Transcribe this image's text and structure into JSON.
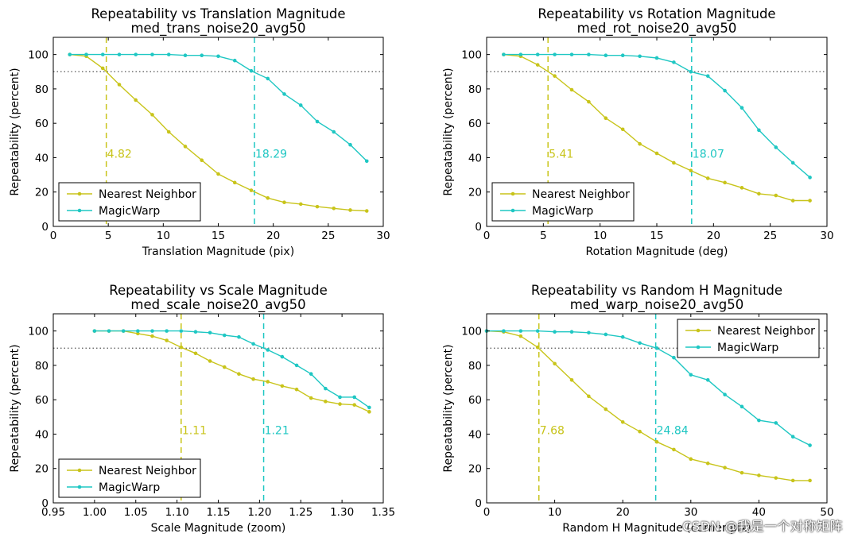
{
  "threshold": 90,
  "watermark": "CSDN @我是一个对称矩阵",
  "colors": {
    "nearest": "#c8c41a",
    "magic": "#1fc7c3",
    "axis": "#000000",
    "threshold": "#555555"
  },
  "chart_data": [
    {
      "type": "line",
      "title": "Repeatability vs Translation Magnitude",
      "subtitle": "med_trans_noise20_avg50",
      "xlabel": "Translation Magnitude (pix)",
      "ylabel": "Repeatability (percent)",
      "xlim": [
        0,
        30
      ],
      "ylim": [
        0,
        110
      ],
      "xticks": [
        0,
        5,
        10,
        15,
        20,
        25,
        30
      ],
      "xtick_labels": [
        "0",
        "5",
        "10",
        "15",
        "20",
        "25",
        "30"
      ],
      "yticks": [
        0,
        20,
        40,
        60,
        80,
        100
      ],
      "ytick_labels": [
        "0",
        "20",
        "40",
        "60",
        "80",
        "100"
      ],
      "legend": "lower-left",
      "series": [
        {
          "name": "Nearest Neighbor",
          "x": [
            1.5,
            3.0,
            4.5,
            6.0,
            7.5,
            9.0,
            10.5,
            12.0,
            13.5,
            15.0,
            16.5,
            18.0,
            19.5,
            21.0,
            22.5,
            24.0,
            25.5,
            27.0,
            28.5
          ],
          "values": [
            100,
            99,
            92,
            82.5,
            73.5,
            65,
            55,
            46.5,
            38.5,
            30.5,
            25.5,
            21,
            16.5,
            14,
            13,
            11.5,
            10.5,
            9.5,
            9
          ]
        },
        {
          "name": "MagicWarp",
          "x": [
            1.5,
            3.0,
            4.5,
            6.0,
            7.5,
            9.0,
            10.5,
            12.0,
            13.5,
            15.0,
            16.5,
            18.0,
            19.5,
            21.0,
            22.5,
            24.0,
            25.5,
            27.0,
            28.5
          ],
          "values": [
            100,
            100,
            100,
            100,
            100,
            100,
            100,
            99.5,
            99.5,
            99,
            96.5,
            90.5,
            86,
            77,
            70.5,
            61,
            55,
            47.5,
            38
          ]
        }
      ],
      "annotations": [
        {
          "series": "Nearest Neighbor",
          "x": 4.82,
          "label": "4.82"
        },
        {
          "series": "MagicWarp",
          "x": 18.29,
          "label": "18.29"
        }
      ]
    },
    {
      "type": "line",
      "title": "Repeatability vs Rotation Magnitude",
      "subtitle": "med_rot_noise20_avg50",
      "xlabel": "Rotation Magnitude (deg)",
      "ylabel": "Repeatability (percent)",
      "xlim": [
        0,
        30
      ],
      "ylim": [
        0,
        110
      ],
      "xticks": [
        0,
        5,
        10,
        15,
        20,
        25,
        30
      ],
      "xtick_labels": [
        "0",
        "5",
        "10",
        "15",
        "20",
        "25",
        "30"
      ],
      "yticks": [
        0,
        20,
        40,
        60,
        80,
        100
      ],
      "ytick_labels": [
        "0",
        "20",
        "40",
        "60",
        "80",
        "100"
      ],
      "legend": "lower-left",
      "series": [
        {
          "name": "Nearest Neighbor",
          "x": [
            1.5,
            3.0,
            4.5,
            6.0,
            7.5,
            9.0,
            10.5,
            12.0,
            13.5,
            15.0,
            16.5,
            18.0,
            19.5,
            21.0,
            22.5,
            24.0,
            25.5,
            27.0,
            28.5
          ],
          "values": [
            100,
            99,
            94,
            87.5,
            79.5,
            72.5,
            63,
            56.5,
            48,
            42.5,
            37,
            32.5,
            28,
            25.5,
            22.5,
            19,
            18,
            15,
            15
          ]
        },
        {
          "name": "MagicWarp",
          "x": [
            1.5,
            3.0,
            4.5,
            6.0,
            7.5,
            9.0,
            10.5,
            12.0,
            13.5,
            15.0,
            16.5,
            18.0,
            19.5,
            21.0,
            22.5,
            24.0,
            25.5,
            27.0,
            28.5
          ],
          "values": [
            100,
            100,
            100,
            100,
            100,
            100,
            99.5,
            99.5,
            99,
            98,
            95.5,
            90,
            87.5,
            79,
            69,
            56,
            46,
            37,
            28.5
          ]
        }
      ],
      "annotations": [
        {
          "series": "Nearest Neighbor",
          "x": 5.41,
          "label": "5.41"
        },
        {
          "series": "MagicWarp",
          "x": 18.07,
          "label": "18.07"
        }
      ]
    },
    {
      "type": "line",
      "title": "Repeatability vs Scale Magnitude",
      "subtitle": "med_scale_noise20_avg50",
      "xlabel": "Scale Magnitude (zoom)",
      "ylabel": "Repeatability (percent)",
      "xlim": [
        0.95,
        1.35
      ],
      "ylim": [
        0,
        110
      ],
      "xticks": [
        0.95,
        1.0,
        1.05,
        1.1,
        1.15,
        1.2,
        1.25,
        1.3,
        1.35
      ],
      "xtick_labels": [
        "0.95",
        "1.00",
        "1.05",
        "1.10",
        "1.15",
        "1.20",
        "1.25",
        "1.30",
        "1.35"
      ],
      "yticks": [
        0,
        20,
        40,
        60,
        80,
        100
      ],
      "ytick_labels": [
        "0",
        "20",
        "40",
        "60",
        "80",
        "100"
      ],
      "legend": "lower-left",
      "series": [
        {
          "name": "Nearest Neighbor",
          "x": [
            1.0,
            1.0175,
            1.035,
            1.0525,
            1.07,
            1.0875,
            1.105,
            1.1225,
            1.14,
            1.1575,
            1.175,
            1.1925,
            1.21,
            1.2275,
            1.245,
            1.2625,
            1.28,
            1.2975,
            1.315,
            1.333
          ],
          "values": [
            100,
            100,
            100,
            98.5,
            97,
            94.5,
            90.5,
            87,
            82.5,
            79,
            75,
            72,
            70.5,
            68,
            66,
            61,
            59,
            57.5,
            57,
            53
          ]
        },
        {
          "name": "MagicWarp",
          "x": [
            1.0,
            1.0175,
            1.035,
            1.0525,
            1.07,
            1.0875,
            1.105,
            1.1225,
            1.14,
            1.1575,
            1.175,
            1.1925,
            1.21,
            1.2275,
            1.245,
            1.2625,
            1.28,
            1.2975,
            1.315,
            1.333
          ],
          "values": [
            100,
            100,
            100,
            100,
            100,
            100,
            100,
            99.5,
            99,
            97.5,
            96.5,
            92.5,
            89,
            85,
            80,
            75,
            66.5,
            61.5,
            61.5,
            55.5
          ]
        }
      ],
      "annotations": [
        {
          "series": "Nearest Neighbor",
          "x": 1.105,
          "label": "1.11"
        },
        {
          "series": "MagicWarp",
          "x": 1.205,
          "label": "1.21"
        }
      ]
    },
    {
      "type": "line",
      "title": "Repeatability vs Random H Magnitude",
      "subtitle": "med_warp_noise20_avg50",
      "xlabel": "Random H Magnitude (corner pix)",
      "ylabel": "Repeatability (percent)",
      "xlim": [
        0,
        50
      ],
      "ylim": [
        0,
        110
      ],
      "xticks": [
        0,
        10,
        20,
        30,
        40,
        50
      ],
      "xtick_labels": [
        "0",
        "10",
        "20",
        "30",
        "40",
        "50"
      ],
      "yticks": [
        0,
        20,
        40,
        60,
        80,
        100
      ],
      "ytick_labels": [
        "0",
        "20",
        "40",
        "60",
        "80",
        "100"
      ],
      "legend": "upper-right",
      "series": [
        {
          "name": "Nearest Neighbor",
          "x": [
            0,
            2.5,
            5.0,
            7.5,
            10.0,
            12.5,
            15.0,
            17.5,
            20.0,
            22.5,
            25.0,
            27.5,
            30.0,
            32.5,
            35.0,
            37.5,
            40.0,
            42.5,
            45.0,
            47.5
          ],
          "values": [
            100,
            99.5,
            97,
            90.5,
            81,
            71.5,
            62,
            54.5,
            47,
            41.5,
            35.5,
            31,
            25.5,
            23,
            20.5,
            17.5,
            16,
            14.5,
            13,
            13
          ]
        },
        {
          "name": "MagicWarp",
          "x": [
            0,
            2.5,
            5.0,
            7.5,
            10.0,
            12.5,
            15.0,
            17.5,
            20.0,
            22.5,
            25.0,
            27.5,
            30.0,
            32.5,
            35.0,
            37.5,
            40.0,
            42.5,
            45.0,
            47.5
          ],
          "values": [
            100,
            100,
            100,
            100,
            99.5,
            99.5,
            99,
            98,
            96.5,
            93,
            90,
            84.5,
            74.5,
            71.5,
            63,
            56,
            48,
            46.5,
            38.5,
            33.5
          ]
        }
      ],
      "annotations": [
        {
          "series": "Nearest Neighbor",
          "x": 7.68,
          "label": "7.68"
        },
        {
          "series": "MagicWarp",
          "x": 24.84,
          "label": "24.84"
        }
      ]
    }
  ]
}
